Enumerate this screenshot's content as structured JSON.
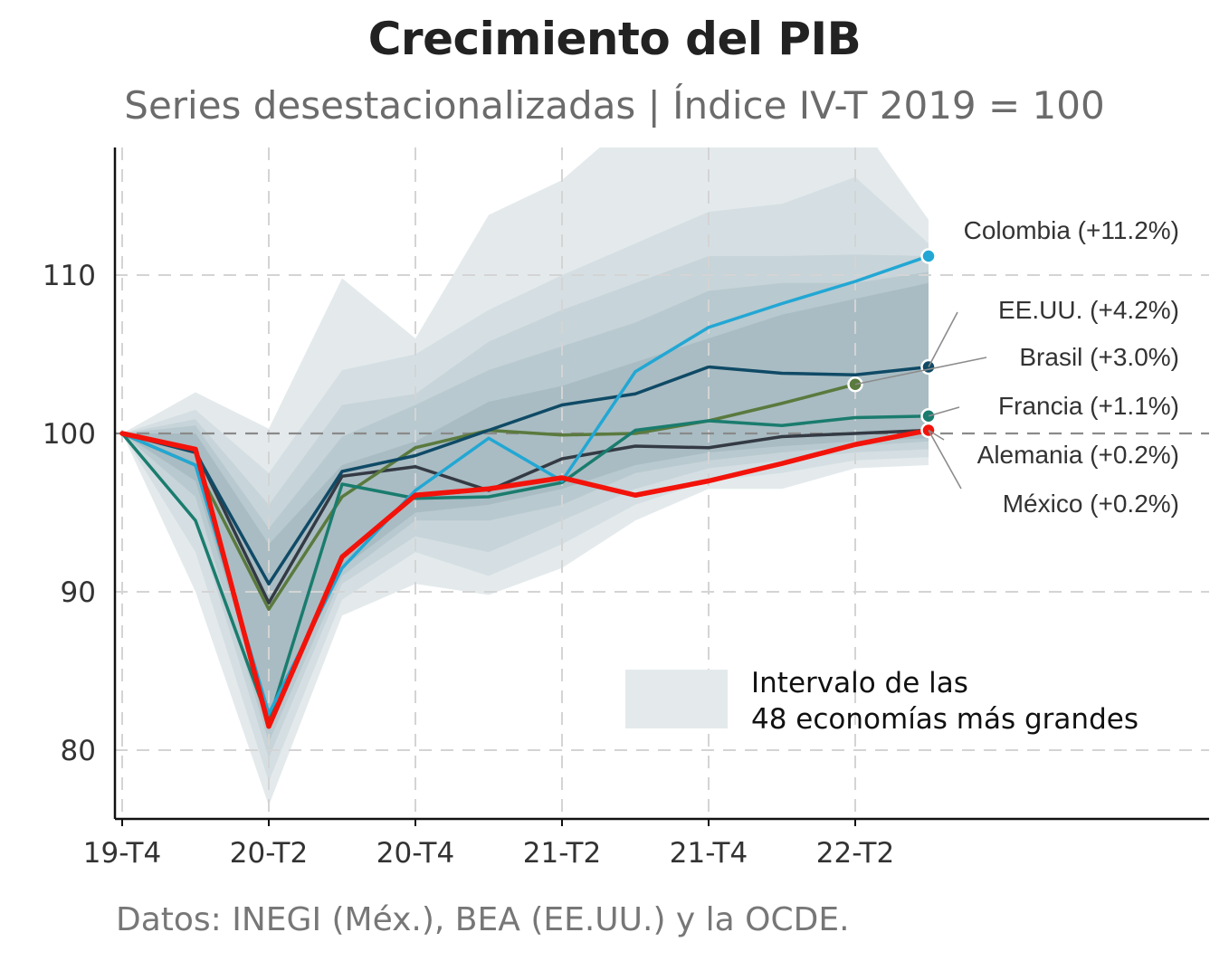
{
  "title": "Crecimiento del PIB",
  "subtitle": "Series desestacionalizadas | Índice IV-T 2019 = 100",
  "caption": "Datos: INEGI (Méx.), BEA (EE.UU.) y la OCDE.",
  "legend": {
    "line1": "Intervalo de las",
    "line2": "48 economías más grandes",
    "swatch_color": "#e4eaec"
  },
  "chart_data": {
    "type": "line",
    "title": "Crecimiento del PIB",
    "subtitle": "Series desestacionalizadas | Índice IV-T 2019 = 100",
    "xlabel": "",
    "ylabel": "",
    "x": [
      "19-T4",
      "20-T1",
      "20-T2",
      "20-T3",
      "20-T4",
      "21-T1",
      "21-T2",
      "21-T3",
      "21-T4",
      "22-T1",
      "22-T2",
      "22-T3"
    ],
    "x_tick_labels": [
      "19-T4",
      "20-T2",
      "20-T4",
      "21-T2",
      "21-T4",
      "22-T2"
    ],
    "x_tick_categories": [
      "19-T4",
      "20-T2",
      "20-T4",
      "21-T2",
      "21-T4",
      "22-T2"
    ],
    "ylim": [
      76,
      118
    ],
    "y_ticks": [
      80,
      90,
      100,
      110
    ],
    "reference_line": 100,
    "grid": true,
    "bands": [
      {
        "lower": [
          100,
          90.0,
          76.5,
          88.5,
          90.5,
          89.8,
          91.5,
          94.5,
          96.5,
          96.5,
          97.8,
          98.0
        ],
        "upper": [
          100,
          102.6,
          100.3,
          109.8,
          106.0,
          113.8,
          116.0,
          120.0,
          120.0,
          120.0,
          120.0,
          113.5
        ],
        "color": "#e4eaec"
      },
      {
        "lower": [
          100,
          92.5,
          78.0,
          89.5,
          92.5,
          91.0,
          93.0,
          95.5,
          97.0,
          97.5,
          98.3,
          98.5
        ],
        "upper": [
          100,
          101.5,
          97.5,
          104.0,
          105.0,
          107.8,
          110.0,
          112.0,
          114.0,
          114.5,
          116.2,
          112.0
        ],
        "color": "#d5dfe3"
      },
      {
        "lower": [
          100,
          94.5,
          79.5,
          90.5,
          93.5,
          92.5,
          94.5,
          96.5,
          97.8,
          98.3,
          98.8,
          99.0
        ],
        "upper": [
          100,
          100.9,
          95.5,
          101.8,
          102.5,
          105.8,
          107.8,
          109.5,
          111.2,
          111.2,
          111.3,
          111.2
        ],
        "color": "#c7d4d9"
      },
      {
        "lower": [
          100,
          96.0,
          80.5,
          91.0,
          94.5,
          94.5,
          95.5,
          97.5,
          98.3,
          98.8,
          99.2,
          99.5
        ],
        "upper": [
          100,
          100.5,
          94.0,
          99.8,
          101.8,
          104.0,
          105.5,
          107.0,
          109.0,
          109.5,
          109.5,
          110.2
        ],
        "color": "#b8c9cf"
      },
      {
        "lower": [
          100,
          97.0,
          82.0,
          91.5,
          95.0,
          95.5,
          96.5,
          98.0,
          98.8,
          99.2,
          99.5,
          99.7
        ],
        "upper": [
          100,
          100.0,
          93.0,
          98.0,
          99.5,
          102.0,
          103.0,
          104.5,
          106.0,
          107.5,
          108.5,
          109.5
        ],
        "color": "#a9bcc3"
      }
    ],
    "series": [
      {
        "name": "Colombia",
        "label": "Colombia (+11.2%)",
        "color": "#22a7d4",
        "width": 3.5,
        "values": [
          100,
          98.0,
          82.3,
          91.5,
          96.4,
          99.7,
          97.0,
          103.9,
          106.7,
          108.2,
          109.6,
          111.2
        ],
        "endpoint": true
      },
      {
        "name": "EE.UU.",
        "label": "EE.UU. (+4.2%)",
        "color": "#0f4a66",
        "width": 3.5,
        "values": [
          100,
          98.8,
          90.5,
          97.6,
          98.6,
          100.2,
          101.8,
          102.5,
          104.2,
          103.8,
          103.7,
          104.2
        ],
        "endpoint": true
      },
      {
        "name": "Brasil",
        "label": "Brasil (+3.0%)",
        "color": "#5a7a3e",
        "width": 3.5,
        "values": [
          100,
          98.0,
          88.9,
          96.0,
          99.1,
          100.2,
          99.9,
          100.0,
          100.8,
          101.9,
          103.1,
          null
        ],
        "endpoint": true
      },
      {
        "name": "Francia",
        "label": "Francia (+1.1%)",
        "color": "#1a7c6e",
        "width": 3.5,
        "values": [
          100,
          94.5,
          81.8,
          96.8,
          95.9,
          96.0,
          96.9,
          100.2,
          100.8,
          100.5,
          101.0,
          101.1
        ],
        "endpoint": true
      },
      {
        "name": "Alemania",
        "label": "Alemania (+0.2%)",
        "color": "#343a44",
        "width": 3.5,
        "values": [
          100,
          98.9,
          89.3,
          97.3,
          97.9,
          96.4,
          98.4,
          99.2,
          99.1,
          99.8,
          100.0,
          100.2
        ],
        "endpoint": false
      },
      {
        "name": "México",
        "label": "México (+0.2%)",
        "color": "#f2130a",
        "width": 5.5,
        "values": [
          100,
          99.0,
          81.5,
          92.2,
          96.1,
          96.5,
          97.2,
          96.1,
          97.0,
          98.1,
          99.3,
          100.2
        ],
        "endpoint": true
      }
    ]
  }
}
